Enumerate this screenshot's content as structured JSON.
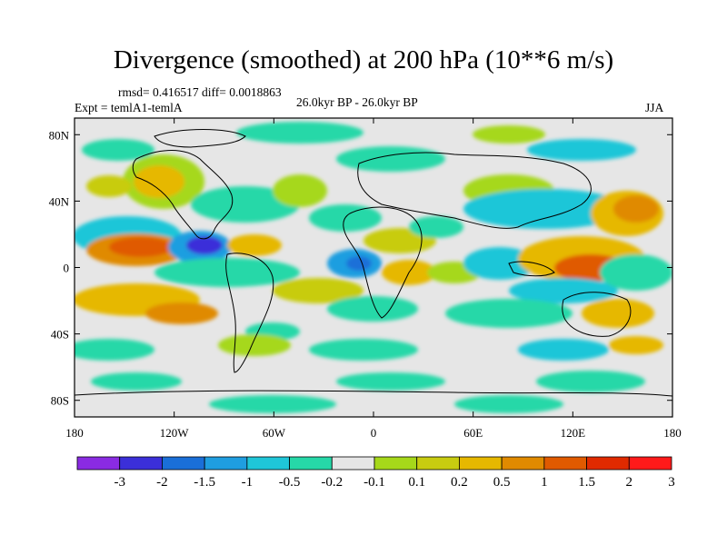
{
  "header": {
    "title": "Divergence (smoothed) at 200 hPa (10**6 m/s)",
    "stats": "rmsd= 0.416517 diff= 0.0018863",
    "experiment": "Expt = temlA1-temlA",
    "period": "26.0kyr BP - 26.0kyr BP",
    "season": "JJA"
  },
  "axes": {
    "lon_labels": [
      "180",
      "120W",
      "60W",
      "0",
      "60E",
      "120E",
      "180"
    ],
    "lat_labels": [
      "80N",
      "40N",
      "0",
      "40S",
      "80S"
    ],
    "lon_values": [
      -180,
      -120,
      -60,
      0,
      60,
      120,
      180
    ],
    "lat_values": [
      80,
      40,
      0,
      -40,
      -80
    ]
  },
  "colorbar": {
    "colors": [
      "#8a2be2",
      "#3b2fd9",
      "#1a6fd8",
      "#1f9ee0",
      "#1fc6d8",
      "#26d8a8",
      "#e6e6e6",
      "#a6d81a",
      "#c8cc10",
      "#e6b800",
      "#e08a00",
      "#e05a00",
      "#e02a00",
      "#ff1a1a"
    ],
    "labels": [
      "-3",
      "-2",
      "-1.5",
      "-1",
      "-0.5",
      "-0.2",
      "-0.1",
      "0.1",
      "0.2",
      "0.5",
      "1",
      "1.5",
      "2",
      "3"
    ]
  },
  "colors": {
    "land_background": "#e6e6e6",
    "coast": "#000000"
  }
}
